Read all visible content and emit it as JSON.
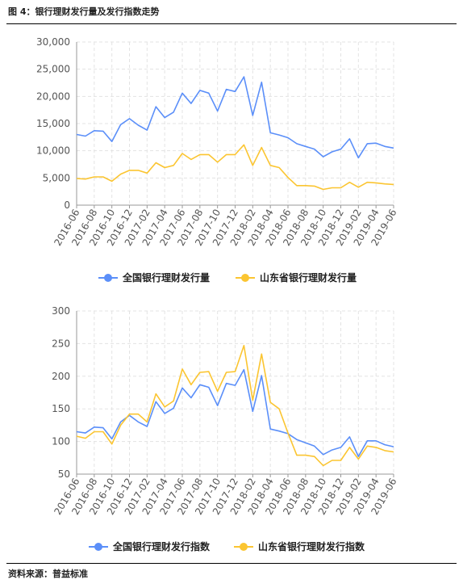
{
  "figure_title": "图 4：银行理财发行量及发行指数走势",
  "source": "资料来源：普益标准",
  "colors": {
    "national": "#5b8ff9",
    "shandong": "#fbc531"
  },
  "chart_data": [
    {
      "type": "line",
      "ylim": [
        0,
        30000
      ],
      "yticks": [
        "0",
        "5,000",
        "10,000",
        "15,000",
        "20,000",
        "25,000",
        "30,000"
      ],
      "ytick_values": [
        0,
        5000,
        10000,
        15000,
        20000,
        25000,
        30000
      ],
      "x": [
        "2016-06",
        "2016-07",
        "2016-08",
        "2016-09",
        "2016-10",
        "2016-11",
        "2016-12",
        "2017-01",
        "2017-02",
        "2017-03",
        "2017-04",
        "2017-05",
        "2017-06",
        "2017-07",
        "2017-08",
        "2017-09",
        "2017-10",
        "2017-11",
        "2017-12",
        "2018-01",
        "2018-02",
        "2018-03",
        "2018-04",
        "2018-05",
        "2018-06",
        "2018-07",
        "2018-08",
        "2018-09",
        "2018-10",
        "2018-11",
        "2018-12",
        "2019-01",
        "2019-02",
        "2019-03",
        "2019-04",
        "2019-05",
        "2019-06"
      ],
      "xtick_labels": [
        "2016-06",
        "2016-08",
        "2016-10",
        "2016-12",
        "2017-02",
        "2017-04",
        "2017-06",
        "2017-08",
        "2017-10",
        "2017-12",
        "2018-02",
        "2018-04",
        "2018-06",
        "2018-08",
        "2018-10",
        "2018-12",
        "2019-02",
        "2019-04",
        "2019-06"
      ],
      "series": [
        {
          "name": "全国银行理财发行量",
          "color_key": "national",
          "values": [
            13000,
            12700,
            13700,
            13600,
            11700,
            14800,
            15900,
            14700,
            13800,
            18100,
            16100,
            17100,
            20600,
            18700,
            21100,
            20600,
            17300,
            21300,
            20900,
            23600,
            16500,
            22600,
            13300,
            12900,
            12400,
            11300,
            10800,
            10300,
            8900,
            9800,
            10300,
            12200,
            8700,
            11300,
            11400,
            10800,
            10500
          ]
        },
        {
          "name": "山东省银行理财发行量",
          "color_key": "shandong",
          "values": [
            4900,
            4800,
            5200,
            5200,
            4400,
            5700,
            6400,
            6400,
            5900,
            7800,
            6900,
            7300,
            9500,
            8400,
            9300,
            9300,
            7900,
            9300,
            9300,
            11100,
            7300,
            10600,
            7300,
            6900,
            5100,
            3600,
            3600,
            3500,
            2900,
            3200,
            3200,
            4200,
            3300,
            4200,
            4100,
            3900,
            3800
          ]
        }
      ]
    },
    {
      "type": "line",
      "ylim": [
        50,
        300
      ],
      "yticks": [
        "50",
        "100",
        "150",
        "200",
        "250",
        "300"
      ],
      "ytick_values": [
        50,
        100,
        150,
        200,
        250,
        300
      ],
      "x": [
        "2016-06",
        "2016-07",
        "2016-08",
        "2016-09",
        "2016-10",
        "2016-11",
        "2016-12",
        "2017-01",
        "2017-02",
        "2017-03",
        "2017-04",
        "2017-05",
        "2017-06",
        "2017-07",
        "2017-08",
        "2017-09",
        "2017-10",
        "2017-11",
        "2017-12",
        "2018-01",
        "2018-02",
        "2018-03",
        "2018-04",
        "2018-05",
        "2018-06",
        "2018-07",
        "2018-08",
        "2018-09",
        "2018-10",
        "2018-11",
        "2018-12",
        "2019-01",
        "2019-02",
        "2019-03",
        "2019-04",
        "2019-05",
        "2019-06"
      ],
      "xtick_labels": [
        "2016-06",
        "2016-08",
        "2016-10",
        "2016-12",
        "2017-02",
        "2017-04",
        "2017-06",
        "2017-08",
        "2017-10",
        "2017-12",
        "2018-02",
        "2018-04",
        "2018-06",
        "2018-08",
        "2018-10",
        "2018-12",
        "2019-02",
        "2019-04",
        "2019-06"
      ],
      "series": [
        {
          "name": "全国银行理财发行指数",
          "color_key": "national",
          "values": [
            115,
            113,
            122,
            121,
            104,
            130,
            140,
            130,
            123,
            161,
            143,
            151,
            182,
            167,
            187,
            183,
            155,
            189,
            186,
            210,
            146,
            201,
            119,
            116,
            112,
            103,
            98,
            93,
            80,
            87,
            91,
            107,
            77,
            101,
            101,
            95,
            92
          ]
        },
        {
          "name": "山东省银行理财发行指数",
          "color_key": "shandong",
          "values": [
            108,
            105,
            115,
            115,
            96,
            125,
            142,
            142,
            130,
            173,
            153,
            162,
            211,
            187,
            206,
            207,
            177,
            206,
            207,
            247,
            163,
            234,
            160,
            150,
            113,
            79,
            79,
            77,
            63,
            71,
            71,
            91,
            73,
            93,
            91,
            86,
            84
          ]
        }
      ]
    }
  ]
}
